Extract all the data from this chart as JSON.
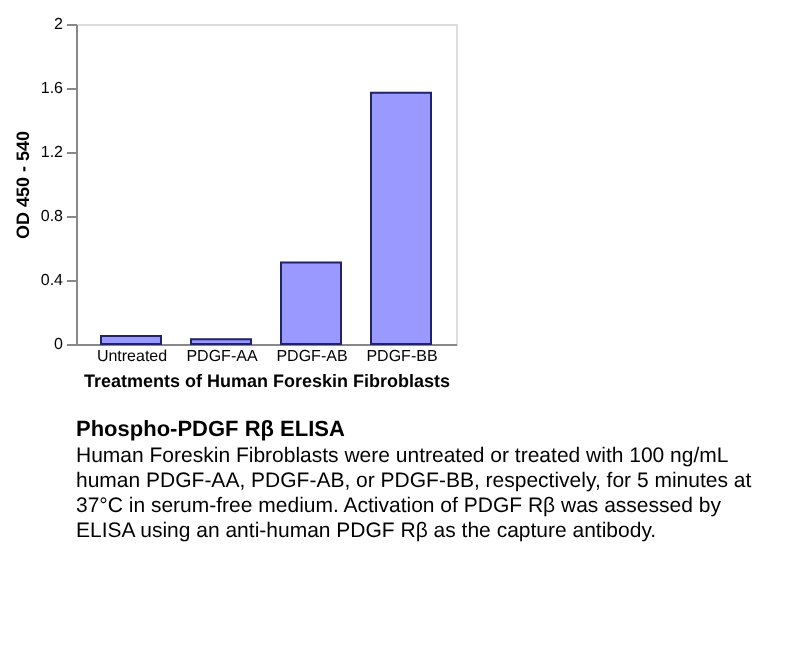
{
  "chart_data": {
    "type": "bar",
    "title": "Phospho-PDGF Rβ ELISA",
    "annotations": [
      "Human Foreskin Fibroblasts were untreated or treated with 100 ng/mL human PDGF-AA, PDGF-AB, or PDGF-BB, respectively, for 5 minutes at 37°C in serum-free medium. Activation of PDGF Rβ was assessed by ELISA using an anti-human PDGF Rβ as the capture antibody."
    ],
    "xlabel": "Treatments of Human Foreskin Fibroblasts",
    "ylabel": "OD 450 - 540",
    "categories": [
      "Untreated",
      "PDGF-AA",
      "PDGF-AB",
      "PDGF-BB"
    ],
    "values": [
      0.05,
      0.03,
      0.51,
      1.57
    ],
    "color": "#9999ff",
    "ylim": [
      0,
      2
    ],
    "yticks": [
      0,
      0.4,
      0.8,
      1.2,
      1.6,
      2
    ],
    "grid": false
  }
}
